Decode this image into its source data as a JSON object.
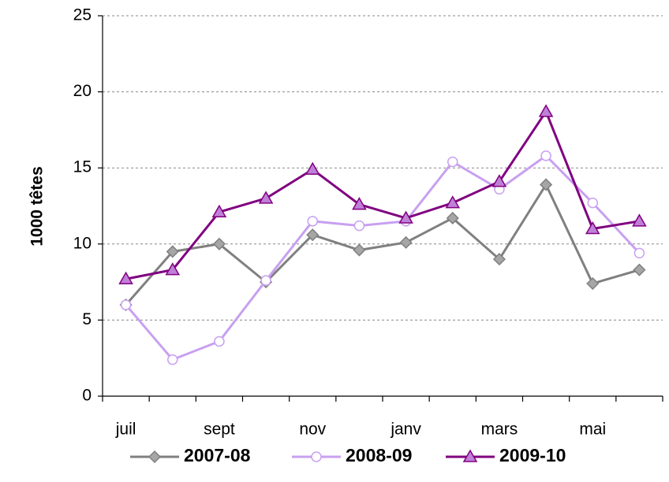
{
  "chart_data": {
    "type": "line",
    "y_label": "1000 têtes",
    "categories": [
      "juil",
      null,
      "sept",
      null,
      "nov",
      null,
      "janv",
      null,
      "mars",
      null,
      "mai",
      null
    ],
    "ylim": [
      0,
      25
    ],
    "yticks": [
      0,
      5,
      10,
      15,
      20,
      25
    ],
    "grid": true,
    "legend": "bottom",
    "series": [
      {
        "name": "2007-08",
        "color": "#808080",
        "marker": "diamond",
        "marker_fill": "#a6a6a6",
        "values": [
          6.0,
          9.5,
          10.0,
          7.5,
          10.6,
          9.6,
          10.1,
          11.7,
          9.0,
          13.9,
          7.4,
          8.3
        ]
      },
      {
        "name": "2008-09",
        "color": "#c8a0f0",
        "marker": "circle",
        "marker_fill": "#ffffff",
        "values": [
          6.0,
          2.4,
          3.6,
          7.6,
          11.5,
          11.2,
          11.5,
          15.4,
          13.6,
          15.8,
          12.7,
          9.4
        ]
      },
      {
        "name": "2009-10",
        "color": "#800080",
        "marker": "triangle",
        "marker_fill": "#c080d8",
        "values": [
          7.7,
          8.3,
          12.1,
          13.0,
          14.9,
          12.6,
          11.7,
          12.7,
          14.1,
          18.7,
          11.0,
          11.5
        ]
      }
    ]
  }
}
